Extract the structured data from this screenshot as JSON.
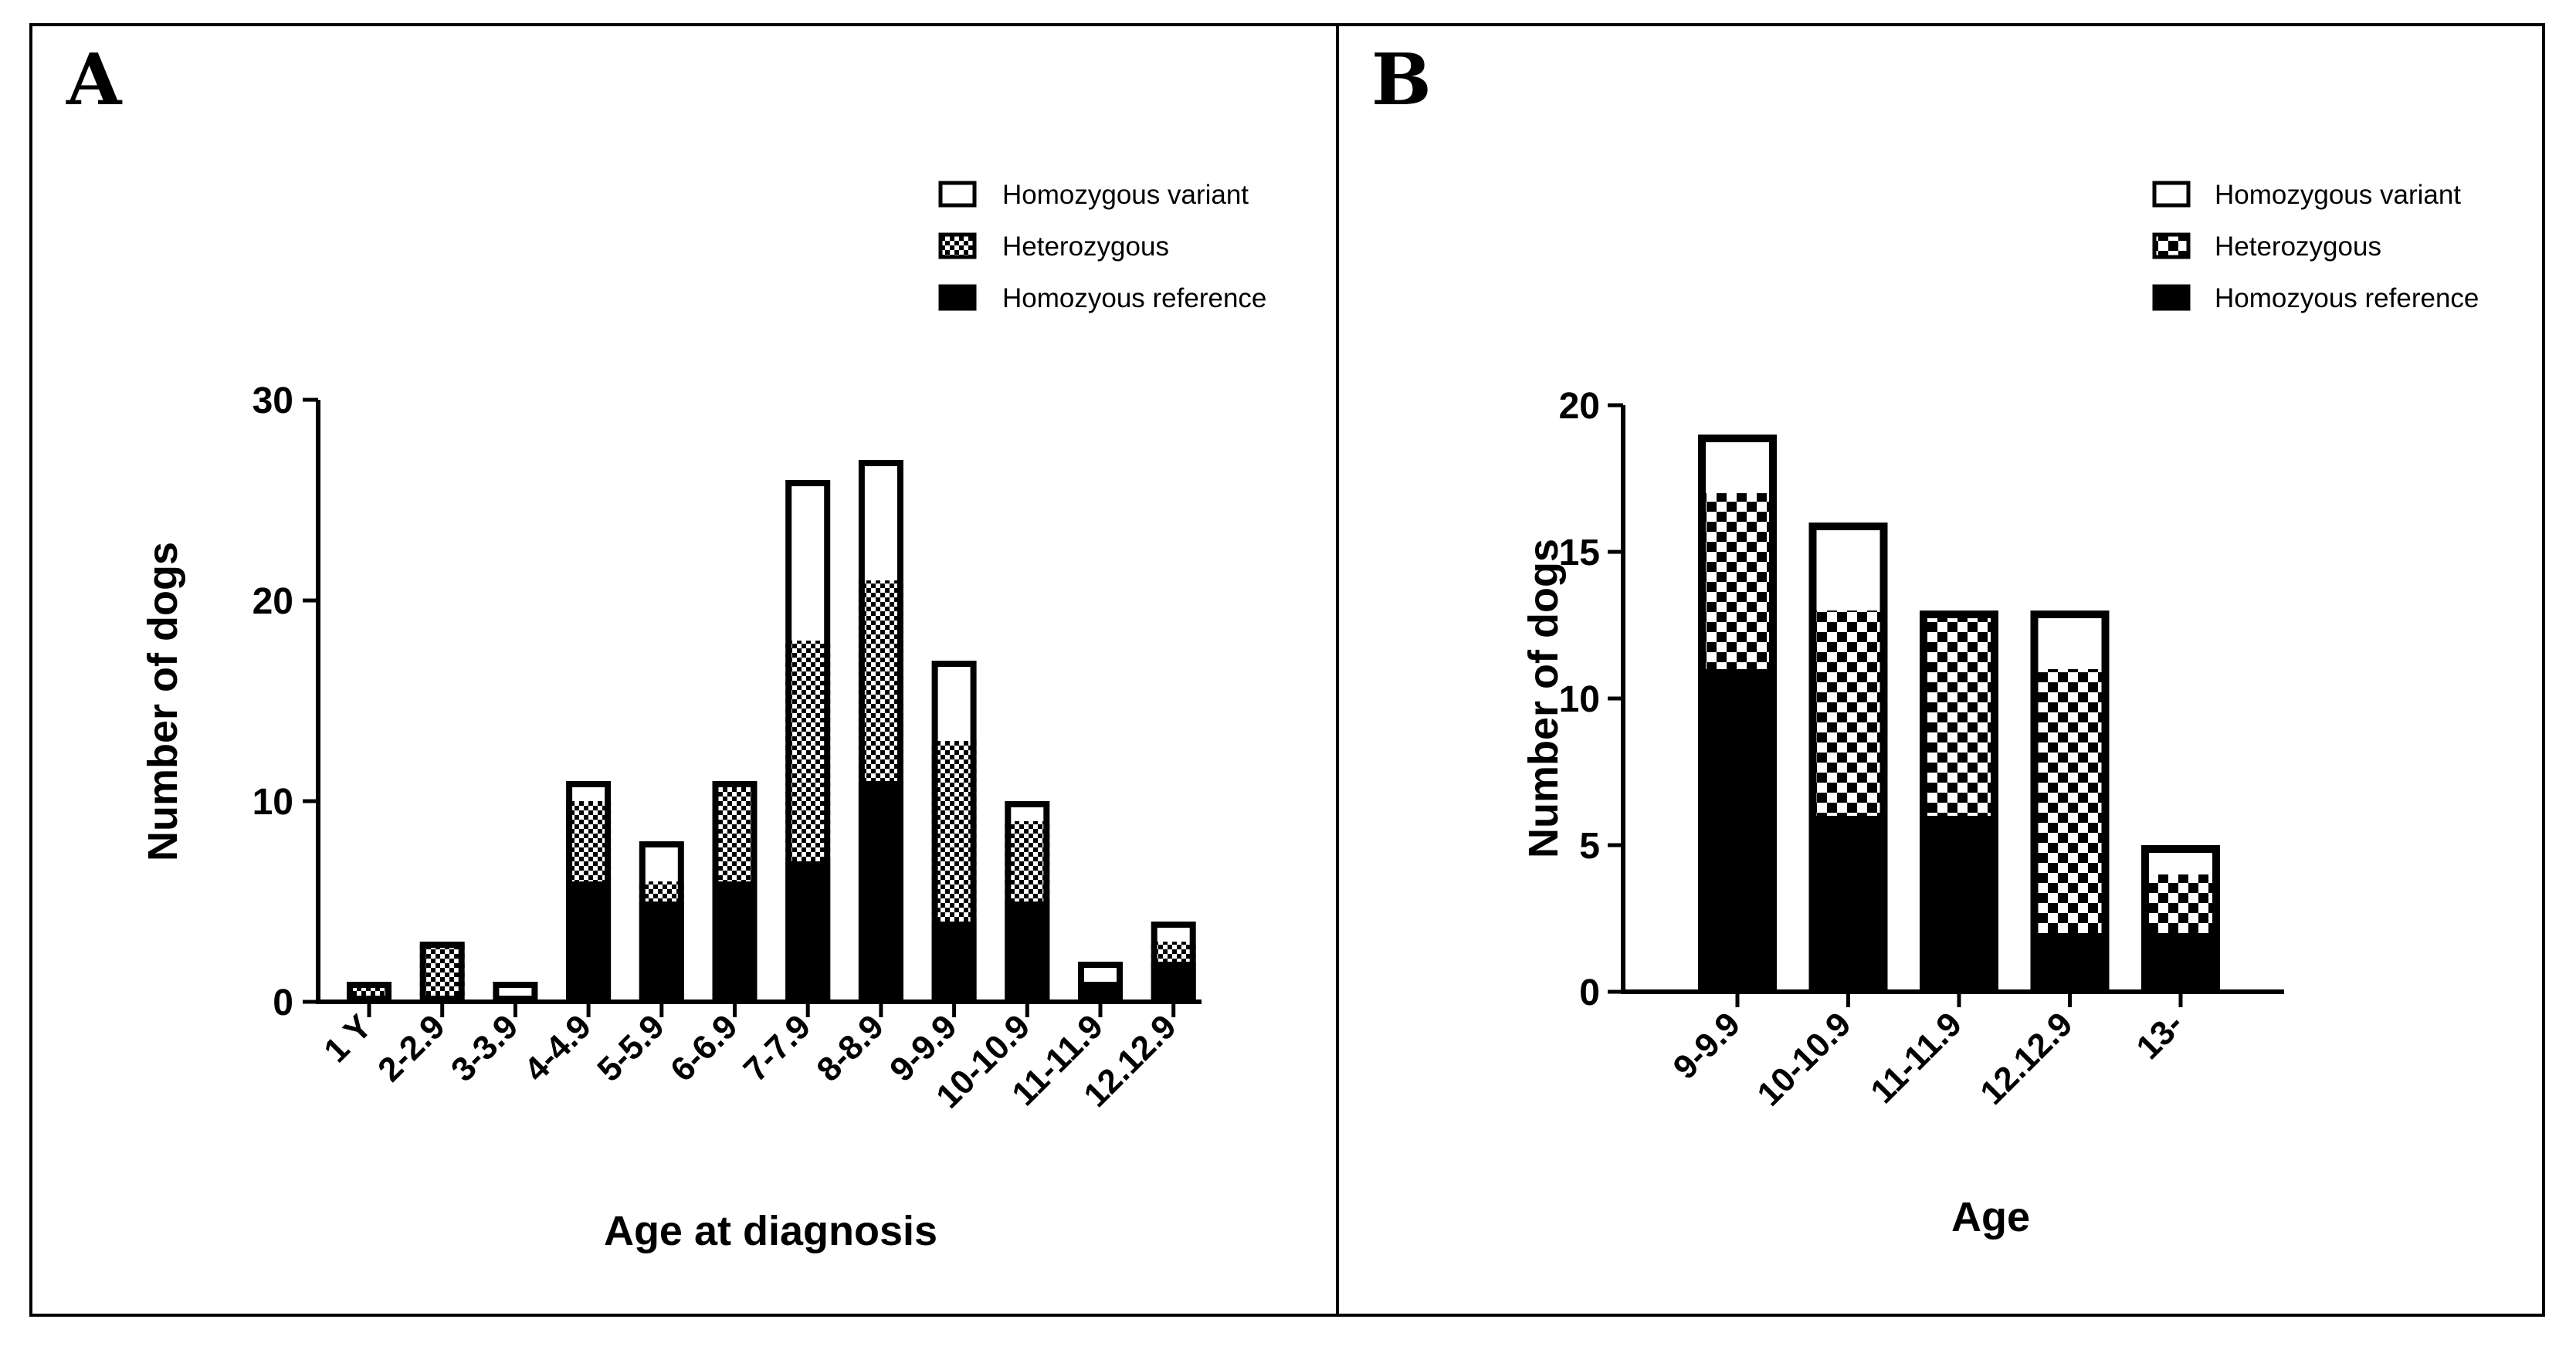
{
  "figure": {
    "panels": [
      {
        "letter": "A",
        "legend": [
          "Homozygous variant",
          "Heterozygous",
          "Homozyous reference"
        ]
      },
      {
        "letter": "B",
        "legend": [
          "Homozygous variant",
          "Heterozygous",
          "Homozyous reference"
        ]
      }
    ]
  },
  "colors": {
    "reference_fill": "#000000",
    "variant_fill": "#ffffff",
    "heterozygous_pattern": "checkerboard black/white",
    "outline": "#000000"
  },
  "chart_data": [
    {
      "type": "bar",
      "stacked": true,
      "title": "",
      "xlabel": "Age at diagnosis",
      "ylabel": "Number of dogs",
      "ylim": [
        0,
        30
      ],
      "yticks": [
        0,
        10,
        20,
        30
      ],
      "categories": [
        "1 Y",
        "2-2.9",
        "3-3.9",
        "4-4.9",
        "5-5.9",
        "6-6.9",
        "7-7.9",
        "8-8.9",
        "9-9.9",
        "10-10.9",
        "11-11.9",
        "12.12.9"
      ],
      "series": [
        {
          "name": "Homozyous reference",
          "values": [
            0,
            0,
            0,
            6,
            5,
            6,
            7,
            11,
            4,
            5,
            1,
            2
          ]
        },
        {
          "name": "Heterozygous",
          "values": [
            1,
            3,
            0,
            4,
            1,
            5,
            11,
            10,
            9,
            4,
            0,
            1
          ]
        },
        {
          "name": "Homozygous variant",
          "values": [
            0,
            0,
            1,
            1,
            2,
            0,
            8,
            6,
            4,
            1,
            1,
            1
          ]
        }
      ],
      "legend_position": "top-right"
    },
    {
      "type": "bar",
      "stacked": true,
      "title": "",
      "xlabel": "Age",
      "ylabel": "Number of dogs",
      "ylim": [
        0,
        20
      ],
      "yticks": [
        0,
        5,
        10,
        15,
        20
      ],
      "categories": [
        "9-9.9",
        "10-10.9",
        "11-11.9",
        "12.12.9",
        "13-"
      ],
      "series": [
        {
          "name": "Homozyous reference",
          "values": [
            11,
            6,
            6,
            2,
            2
          ]
        },
        {
          "name": "Heterozygous",
          "values": [
            6,
            7,
            7,
            9,
            2
          ]
        },
        {
          "name": "Homozygous variant",
          "values": [
            2,
            3,
            0,
            2,
            1
          ]
        }
      ],
      "legend_position": "top-right"
    }
  ]
}
